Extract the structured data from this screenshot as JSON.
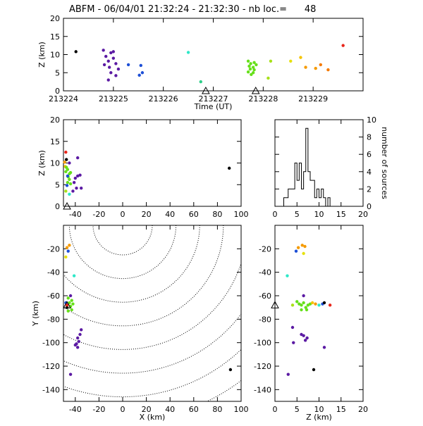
{
  "title": "ABFM - 06/04/01 21:32:24 - 21:32:30 - nb loc.=      48",
  "chart_data": [
    {
      "id": "time_height",
      "type": "scatter",
      "xlabel": "Time (UT)",
      "ylabel": "Z (km)",
      "xlim": [
        213224,
        213230
      ],
      "ylim": [
        0,
        20
      ],
      "xticks": [
        "213224",
        "213225",
        "213226",
        "213227",
        "213228",
        "213229"
      ],
      "yticks": [
        "0",
        "5",
        "10",
        "15",
        "20"
      ],
      "station_markers_x": [
        213226.85,
        213227.85
      ],
      "points": [
        {
          "x": 213224.25,
          "y": 10.8,
          "color": "#000000"
        },
        {
          "x": 213224.8,
          "y": 11.2,
          "color": "#5b1aa3"
        },
        {
          "x": 213224.95,
          "y": 10.5,
          "color": "#5b1aa3"
        },
        {
          "x": 213225.0,
          "y": 10.8,
          "color": "#5b1aa3"
        },
        {
          "x": 213224.85,
          "y": 9.5,
          "color": "#5b1aa3"
        },
        {
          "x": 213225.0,
          "y": 9.0,
          "color": "#5b1aa3"
        },
        {
          "x": 213224.9,
          "y": 8.2,
          "color": "#5b1aa3"
        },
        {
          "x": 213224.82,
          "y": 7.2,
          "color": "#5b1aa3"
        },
        {
          "x": 213225.05,
          "y": 7.5,
          "color": "#5b1aa3"
        },
        {
          "x": 213224.92,
          "y": 6.5,
          "color": "#5b1aa3"
        },
        {
          "x": 213225.1,
          "y": 6.0,
          "color": "#5b1aa3"
        },
        {
          "x": 213224.95,
          "y": 5.0,
          "color": "#5b1aa3"
        },
        {
          "x": 213225.05,
          "y": 4.2,
          "color": "#5b1aa3"
        },
        {
          "x": 213224.9,
          "y": 3.0,
          "color": "#5b1aa3"
        },
        {
          "x": 213225.3,
          "y": 7.2,
          "color": "#1d4fd6"
        },
        {
          "x": 213225.55,
          "y": 7.0,
          "color": "#1d4fd6"
        },
        {
          "x": 213225.58,
          "y": 5.0,
          "color": "#1d4fd6"
        },
        {
          "x": 213225.52,
          "y": 4.3,
          "color": "#1d4fd6"
        },
        {
          "x": 213226.5,
          "y": 10.6,
          "color": "#2ee8c8"
        },
        {
          "x": 213226.75,
          "y": 2.5,
          "color": "#2fcf8a"
        },
        {
          "x": 213227.7,
          "y": 8.2,
          "color": "#66e01a"
        },
        {
          "x": 213227.75,
          "y": 7.5,
          "color": "#66e01a"
        },
        {
          "x": 213227.82,
          "y": 7.8,
          "color": "#66e01a"
        },
        {
          "x": 213227.72,
          "y": 6.8,
          "color": "#66e01a"
        },
        {
          "x": 213227.8,
          "y": 6.5,
          "color": "#66e01a"
        },
        {
          "x": 213227.74,
          "y": 6.0,
          "color": "#66e01a"
        },
        {
          "x": 213227.82,
          "y": 5.8,
          "color": "#66e01a"
        },
        {
          "x": 213227.7,
          "y": 5.2,
          "color": "#66e01a"
        },
        {
          "x": 213227.8,
          "y": 5.0,
          "color": "#66e01a"
        },
        {
          "x": 213227.76,
          "y": 4.5,
          "color": "#66e01a"
        },
        {
          "x": 213227.86,
          "y": 7.2,
          "color": "#66e01a"
        },
        {
          "x": 213228.1,
          "y": 3.5,
          "color": "#a8e11a"
        },
        {
          "x": 213228.15,
          "y": 8.2,
          "color": "#a8e11a"
        },
        {
          "x": 213228.55,
          "y": 8.2,
          "color": "#e6e10e"
        },
        {
          "x": 213228.75,
          "y": 9.2,
          "color": "#f5c400"
        },
        {
          "x": 213228.85,
          "y": 6.5,
          "color": "#f59a00"
        },
        {
          "x": 213229.05,
          "y": 6.2,
          "color": "#f59a00"
        },
        {
          "x": 213229.15,
          "y": 7.2,
          "color": "#f57a00"
        },
        {
          "x": 213229.3,
          "y": 5.8,
          "color": "#f57a00"
        },
        {
          "x": 213229.6,
          "y": 12.5,
          "color": "#e8261a"
        }
      ]
    },
    {
      "id": "x_z",
      "type": "scatter",
      "xlabel": "",
      "ylabel": "Z (km)",
      "xlim": [
        -50,
        100
      ],
      "ylim": [
        0,
        20
      ],
      "xticks": [
        "-40",
        "-20",
        "0",
        "20",
        "40",
        "60",
        "80",
        "100"
      ],
      "yticks": [
        "0",
        "5",
        "10",
        "15",
        "20"
      ],
      "station_marker_x": -47,
      "points": [
        {
          "x": -48,
          "y": 12.5,
          "color": "#e8261a"
        },
        {
          "x": -49,
          "y": 10.2,
          "color": "#f59a00"
        },
        {
          "x": -48.5,
          "y": 9.2,
          "color": "#f5c400"
        },
        {
          "x": -47.5,
          "y": 9.0,
          "color": "#66e01a"
        },
        {
          "x": -46.5,
          "y": 8.5,
          "color": "#66e01a"
        },
        {
          "x": -48,
          "y": 8.0,
          "color": "#66e01a"
        },
        {
          "x": -45,
          "y": 7.5,
          "color": "#66e01a"
        },
        {
          "x": -44,
          "y": 7.8,
          "color": "#66e01a"
        },
        {
          "x": -46,
          "y": 6.8,
          "color": "#66e01a"
        },
        {
          "x": -45,
          "y": 6.2,
          "color": "#66e01a"
        },
        {
          "x": -46.5,
          "y": 5.5,
          "color": "#66e01a"
        },
        {
          "x": -44,
          "y": 5.2,
          "color": "#66e01a"
        },
        {
          "x": -48,
          "y": 3.5,
          "color": "#a8e11a"
        },
        {
          "x": -47,
          "y": 4.8,
          "color": "#1d4fd6"
        },
        {
          "x": -46.5,
          "y": 7.0,
          "color": "#1d4fd6"
        },
        {
          "x": -45,
          "y": 2.8,
          "color": "#2ee8c8"
        },
        {
          "x": -47.5,
          "y": 10.8,
          "color": "#000000"
        },
        {
          "x": -38,
          "y": 11.2,
          "color": "#5b1aa3"
        },
        {
          "x": -36,
          "y": 7.2,
          "color": "#5b1aa3"
        },
        {
          "x": -38,
          "y": 7.0,
          "color": "#5b1aa3"
        },
        {
          "x": -40,
          "y": 6.5,
          "color": "#5b1aa3"
        },
        {
          "x": -41,
          "y": 5.5,
          "color": "#5b1aa3"
        },
        {
          "x": -39,
          "y": 4.2,
          "color": "#5b1aa3"
        },
        {
          "x": -35,
          "y": 4.2,
          "color": "#5b1aa3"
        },
        {
          "x": -42,
          "y": 3.5,
          "color": "#5b1aa3"
        },
        {
          "x": -45,
          "y": 10.0,
          "color": "#5b1aa3"
        },
        {
          "x": 90,
          "y": 8.8,
          "color": "#000000"
        }
      ]
    },
    {
      "id": "histogram",
      "type": "bar",
      "xlabel": "",
      "ylabel": "number of sources",
      "xlim": [
        0,
        20
      ],
      "ylim": [
        0,
        10
      ],
      "xticks": [
        "0",
        "5",
        "10",
        "15",
        "20"
      ],
      "yticks": [
        "0",
        "2",
        "4",
        "6",
        "8",
        "10"
      ],
      "bin_width": 0.5,
      "bins": [
        {
          "x0": 2.0,
          "count": 1
        },
        {
          "x0": 2.5,
          "count": 1
        },
        {
          "x0": 3.0,
          "count": 2
        },
        {
          "x0": 3.5,
          "count": 2
        },
        {
          "x0": 4.0,
          "count": 2
        },
        {
          "x0": 4.5,
          "count": 5
        },
        {
          "x0": 5.0,
          "count": 3
        },
        {
          "x0": 5.5,
          "count": 5
        },
        {
          "x0": 6.0,
          "count": 2
        },
        {
          "x0": 6.5,
          "count": 4
        },
        {
          "x0": 7.0,
          "count": 9
        },
        {
          "x0": 7.5,
          "count": 4
        },
        {
          "x0": 8.0,
          "count": 3
        },
        {
          "x0": 8.5,
          "count": 3
        },
        {
          "x0": 9.0,
          "count": 1
        },
        {
          "x0": 9.5,
          "count": 2
        },
        {
          "x0": 10.0,
          "count": 1
        },
        {
          "x0": 10.5,
          "count": 2
        },
        {
          "x0": 11.0,
          "count": 1
        },
        {
          "x0": 11.5,
          "count": 0
        },
        {
          "x0": 12.0,
          "count": 1
        }
      ]
    },
    {
      "id": "x_y",
      "type": "scatter",
      "xlabel": "X (km)",
      "ylabel": "Y (km)",
      "xlim": [
        -50,
        100
      ],
      "ylim": [
        -150,
        0
      ],
      "xticks": [
        "-40",
        "-20",
        "0",
        "20",
        "40",
        "60",
        "80",
        "100"
      ],
      "yticks": [
        "-140",
        "-120",
        "-100",
        "-80",
        "-60",
        "-40",
        "-20"
      ],
      "range_ring_center": [
        0,
        0
      ],
      "range_rings_km": [
        25,
        45,
        65,
        85,
        105,
        125,
        145,
        165
      ],
      "station_marker": [
        -47,
        -68
      ],
      "points": [
        {
          "x": -45,
          "y": -17,
          "color": "#f59a00"
        },
        {
          "x": -47,
          "y": -19,
          "color": "#f59a00"
        },
        {
          "x": -46,
          "y": -22,
          "color": "#1d4fd6"
        },
        {
          "x": -48,
          "y": -27,
          "color": "#e6e10e"
        },
        {
          "x": -41,
          "y": -43,
          "color": "#2ee8c8"
        },
        {
          "x": -44,
          "y": -60,
          "color": "#5b1aa3"
        },
        {
          "x": -46,
          "y": -62,
          "color": "#66e01a"
        },
        {
          "x": -43,
          "y": -64,
          "color": "#66e01a"
        },
        {
          "x": -45,
          "y": -66,
          "color": "#66e01a"
        },
        {
          "x": -42,
          "y": -67,
          "color": "#66e01a"
        },
        {
          "x": -44,
          "y": -69,
          "color": "#66e01a"
        },
        {
          "x": -47,
          "y": -70,
          "color": "#000000"
        },
        {
          "x": -48,
          "y": -66,
          "color": "#1d4fd6"
        },
        {
          "x": -46,
          "y": -73,
          "color": "#66e01a"
        },
        {
          "x": -43,
          "y": -72,
          "color": "#66e01a"
        },
        {
          "x": -47,
          "y": -68,
          "color": "#e8261a"
        },
        {
          "x": -35,
          "y": -89,
          "color": "#5b1aa3"
        },
        {
          "x": -36,
          "y": -93,
          "color": "#5b1aa3"
        },
        {
          "x": -38,
          "y": -96,
          "color": "#5b1aa3"
        },
        {
          "x": -37,
          "y": -99,
          "color": "#5b1aa3"
        },
        {
          "x": -39,
          "y": -101,
          "color": "#5b1aa3"
        },
        {
          "x": -38,
          "y": -104,
          "color": "#5b1aa3"
        },
        {
          "x": -40,
          "y": -102,
          "color": "#5b1aa3"
        },
        {
          "x": -44,
          "y": -127,
          "color": "#5b1aa3"
        },
        {
          "x": 91,
          "y": -123,
          "color": "#000000"
        }
      ]
    },
    {
      "id": "z_y",
      "type": "scatter",
      "xlabel": "Z (km)",
      "ylabel": "",
      "xlim": [
        0,
        20
      ],
      "ylim": [
        -150,
        0
      ],
      "xticks": [
        "0",
        "5",
        "10",
        "15",
        "20"
      ],
      "yticks": [
        "-140",
        "-120",
        "-100",
        "-80",
        "-60",
        "-40",
        "-20"
      ],
      "station_marker": [
        0,
        -68
      ],
      "points": [
        {
          "x": 6.2,
          "y": -17,
          "color": "#f59a00"
        },
        {
          "x": 6.8,
          "y": -18,
          "color": "#f59a00"
        },
        {
          "x": 5.3,
          "y": -19,
          "color": "#f59a00"
        },
        {
          "x": 4.8,
          "y": -22,
          "color": "#1d4fd6"
        },
        {
          "x": 6.5,
          "y": -24,
          "color": "#e6e10e"
        },
        {
          "x": 2.8,
          "y": -43,
          "color": "#2ee8c8"
        },
        {
          "x": 6.5,
          "y": -60,
          "color": "#5b1aa3"
        },
        {
          "x": 5.0,
          "y": -65,
          "color": "#66e01a"
        },
        {
          "x": 5.5,
          "y": -67,
          "color": "#66e01a"
        },
        {
          "x": 6.0,
          "y": -68,
          "color": "#66e01a"
        },
        {
          "x": 6.5,
          "y": -66,
          "color": "#66e01a"
        },
        {
          "x": 7.0,
          "y": -70,
          "color": "#66e01a"
        },
        {
          "x": 7.5,
          "y": -68,
          "color": "#66e01a"
        },
        {
          "x": 7.2,
          "y": -72,
          "color": "#66e01a"
        },
        {
          "x": 6.0,
          "y": -72,
          "color": "#66e01a"
        },
        {
          "x": 8.0,
          "y": -67,
          "color": "#66e01a"
        },
        {
          "x": 8.5,
          "y": -66,
          "color": "#f5c400"
        },
        {
          "x": 9.2,
          "y": -67,
          "color": "#f59a00"
        },
        {
          "x": 10.0,
          "y": -68,
          "color": "#2ee8c8"
        },
        {
          "x": 10.8,
          "y": -67,
          "color": "#1d4fd6"
        },
        {
          "x": 11.2,
          "y": -66,
          "color": "#000000"
        },
        {
          "x": 12.5,
          "y": -68,
          "color": "#e8261a"
        },
        {
          "x": 4.0,
          "y": -68,
          "color": "#a8e11a"
        },
        {
          "x": 4.0,
          "y": -87,
          "color": "#5b1aa3"
        },
        {
          "x": 6.5,
          "y": -94,
          "color": "#5b1aa3"
        },
        {
          "x": 6.9,
          "y": -98,
          "color": "#5b1aa3"
        },
        {
          "x": 7.3,
          "y": -96,
          "color": "#5b1aa3"
        },
        {
          "x": 6.0,
          "y": -93,
          "color": "#5b1aa3"
        },
        {
          "x": 4.2,
          "y": -100,
          "color": "#5b1aa3"
        },
        {
          "x": 11.2,
          "y": -104,
          "color": "#5b1aa3"
        },
        {
          "x": 3.0,
          "y": -127,
          "color": "#5b1aa3"
        },
        {
          "x": 8.8,
          "y": -123,
          "color": "#000000"
        }
      ]
    }
  ]
}
